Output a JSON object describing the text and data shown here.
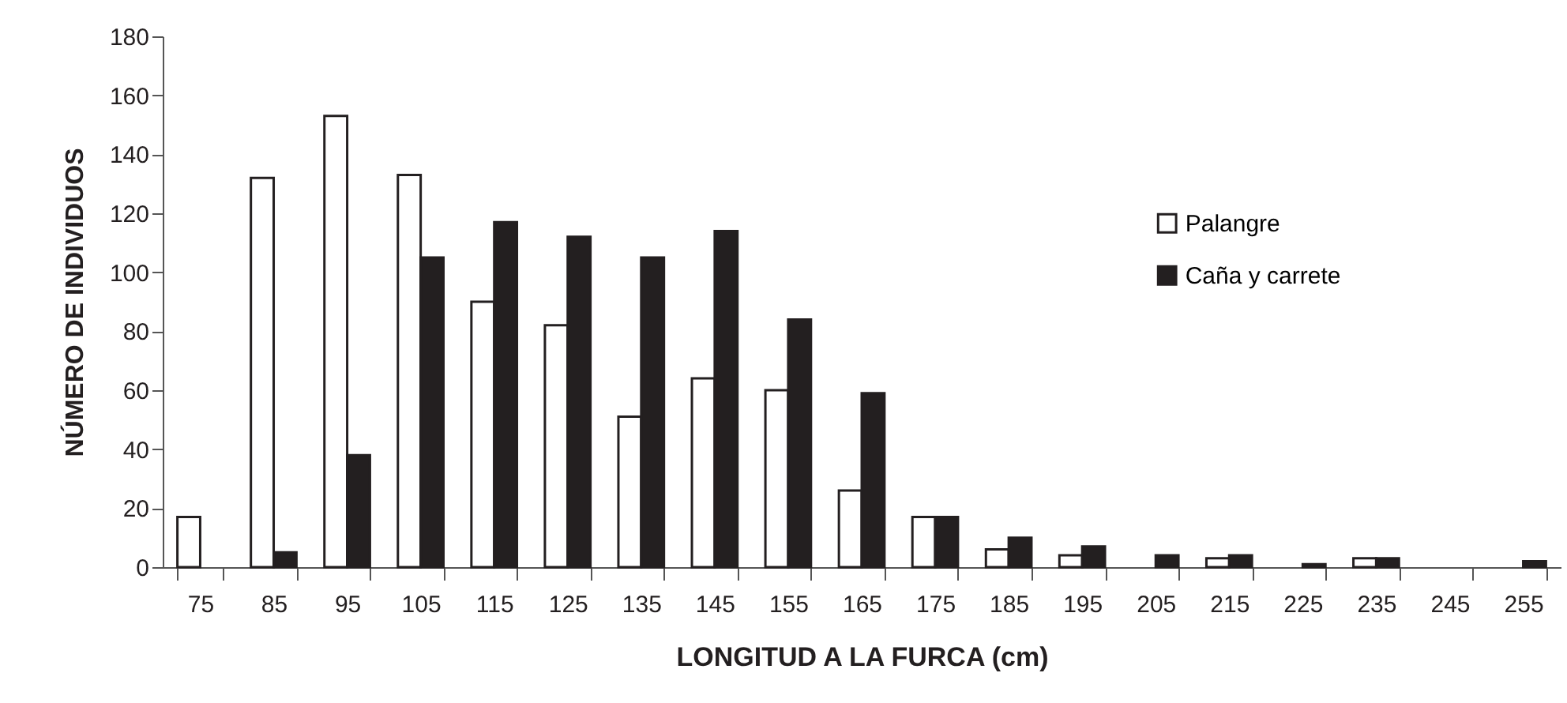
{
  "chart_data": {
    "type": "bar",
    "xlabel": "LONGITUD A LA FURCA (cm)",
    "ylabel": "NÚMERO DE INDIVIDUOS",
    "categories": [
      "75",
      "85",
      "95",
      "105",
      "115",
      "125",
      "135",
      "145",
      "155",
      "165",
      "175",
      "185",
      "195",
      "205",
      "215",
      "225",
      "235",
      "245",
      "255"
    ],
    "series": [
      {
        "name": "Palangre",
        "color": "#ffffff",
        "values": [
          17,
          132,
          153,
          133,
          90,
          82,
          51,
          64,
          60,
          26,
          17,
          6,
          4,
          0,
          3,
          0,
          3,
          0,
          0
        ]
      },
      {
        "name": "Caña y carrete",
        "color": "#231f20",
        "values": [
          0,
          5,
          38,
          105,
          117,
          112,
          105,
          114,
          84,
          59,
          17,
          10,
          7,
          4,
          4,
          1,
          3,
          0,
          2
        ]
      }
    ],
    "ylim": [
      0,
      180
    ],
    "yticks": [
      0,
      20,
      40,
      60,
      80,
      100,
      120,
      140,
      160,
      180
    ],
    "legend": "right"
  }
}
